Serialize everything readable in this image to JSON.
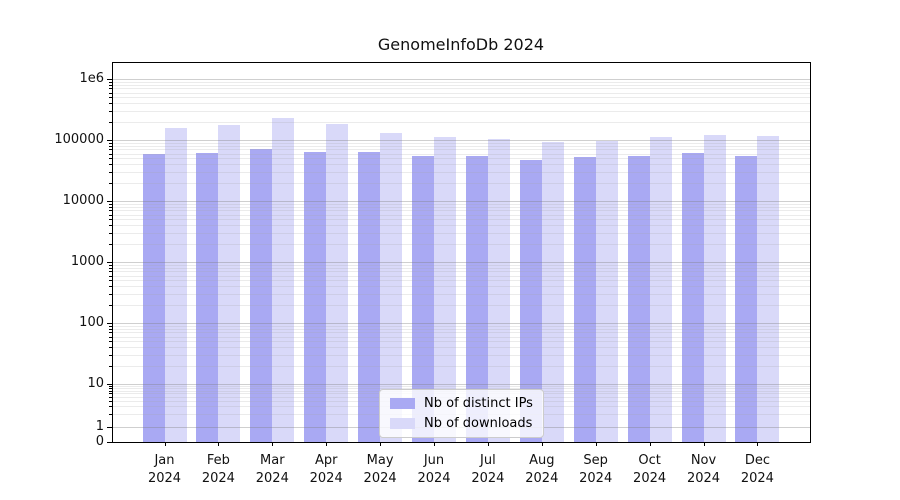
{
  "chart_data": {
    "type": "bar",
    "title": "GenomeInfoDb 2024",
    "categories": [
      "Jan 2024",
      "Feb 2024",
      "Mar 2024",
      "Apr 2024",
      "May 2024",
      "Jun 2024",
      "Jul 2024",
      "Aug 2024",
      "Sep 2024",
      "Oct 2024",
      "Nov 2024",
      "Dec 2024"
    ],
    "series": [
      {
        "name": "Nb of distinct IPs",
        "color": "#a9a9f3",
        "values": [
          59000,
          61000,
          71000,
          64000,
          63000,
          55000,
          55000,
          47000,
          52000,
          55000,
          61000,
          55000
        ]
      },
      {
        "name": "Nb of downloads",
        "color": "#d9d9f9",
        "values": [
          156000,
          176000,
          229000,
          183000,
          130000,
          112000,
          104000,
          93000,
          96000,
          111000,
          122000,
          116000
        ]
      }
    ],
    "xlabel": "",
    "ylabel": "",
    "yscale": "symlog",
    "ylim": [
      0,
      1800000
    ],
    "yticks": [
      {
        "label": "1e6",
        "value": 1000000
      },
      {
        "label": "100000",
        "value": 100000
      },
      {
        "label": "10000",
        "value": 10000
      },
      {
        "label": "1000",
        "value": 1000
      },
      {
        "label": "100",
        "value": 100
      },
      {
        "label": "10",
        "value": 10
      },
      {
        "label": "1",
        "value": 1
      },
      {
        "label": "0",
        "value": 0
      }
    ],
    "grid": true,
    "legend_position": "lower center"
  }
}
